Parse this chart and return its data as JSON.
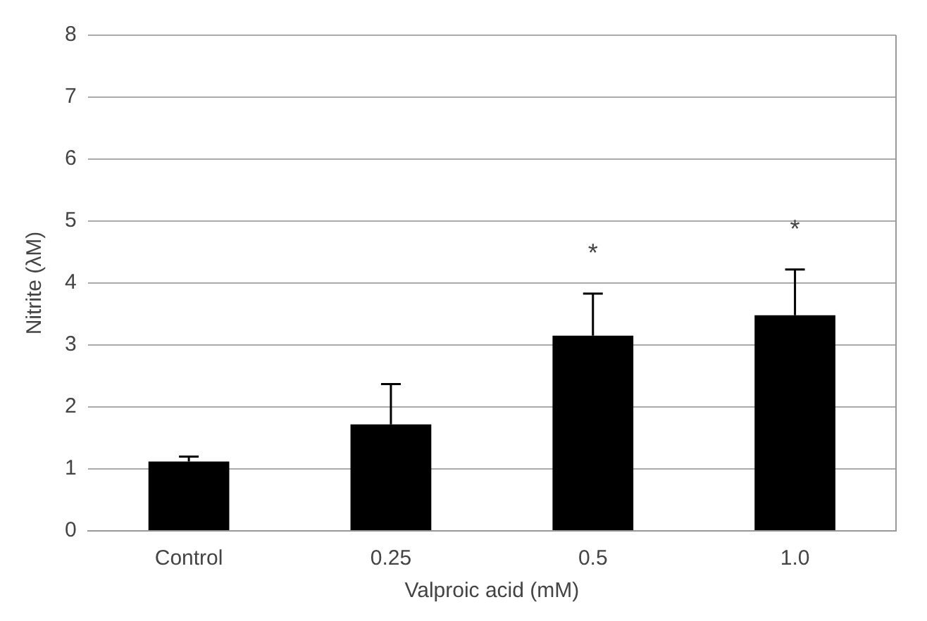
{
  "chart_data": {
    "type": "bar",
    "xlabel": "Valproic acid (mM)",
    "ylabel": "Nitrite (λM)",
    "categories": [
      "Control",
      "0.25",
      "0.5",
      "1.0"
    ],
    "values": [
      1.12,
      1.72,
      3.15,
      3.48
    ],
    "errors": [
      [
        1.12,
        1.2
      ],
      [
        1.72,
        2.37
      ],
      [
        3.15,
        3.83
      ],
      [
        3.48,
        4.22
      ]
    ],
    "color": "#000000",
    "ylim": [
      0,
      8
    ],
    "yticks": [
      0,
      1,
      2,
      3,
      4,
      5,
      6,
      7,
      8
    ],
    "grid": "y",
    "legend": false,
    "annotations": [
      {
        "text": "*",
        "x": "0.5",
        "y": 3.83
      },
      {
        "text": "*",
        "x": "1.0",
        "y": 4.22
      }
    ]
  }
}
